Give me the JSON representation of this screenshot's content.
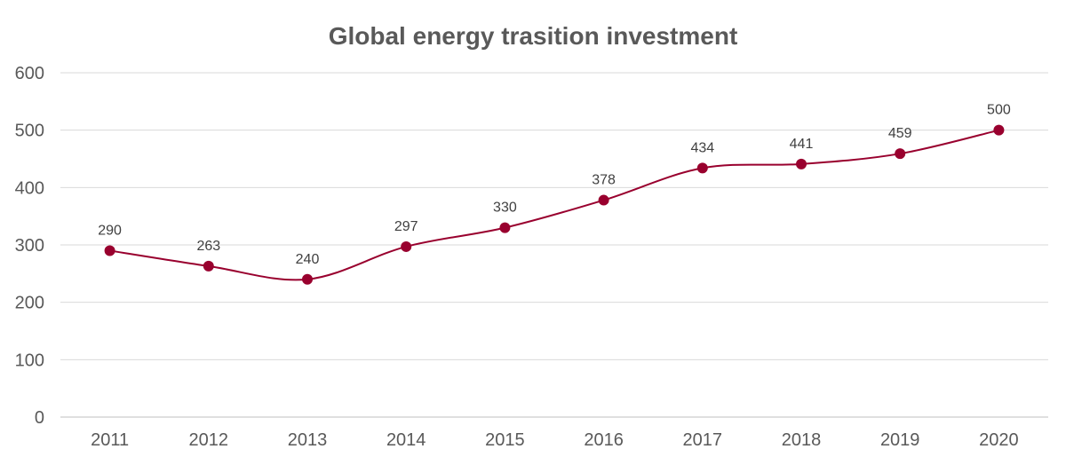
{
  "chart_data": {
    "type": "line",
    "title": "Global energy trasition investment",
    "xlabel": "",
    "ylabel": "",
    "categories": [
      "2011",
      "2012",
      "2013",
      "2014",
      "2015",
      "2016",
      "2017",
      "2018",
      "2019",
      "2020"
    ],
    "series": [
      {
        "name": "Global energy trasition investment",
        "values": [
          290,
          263,
          240,
          297,
          330,
          378,
          434,
          441,
          459,
          500
        ],
        "color": "#99002E",
        "smooth": true,
        "markers": true,
        "data_labels": true
      }
    ],
    "ylim": [
      0,
      600
    ],
    "yticks": [
      0,
      100,
      200,
      300,
      400,
      500,
      600
    ],
    "grid": true,
    "legend": "none"
  }
}
